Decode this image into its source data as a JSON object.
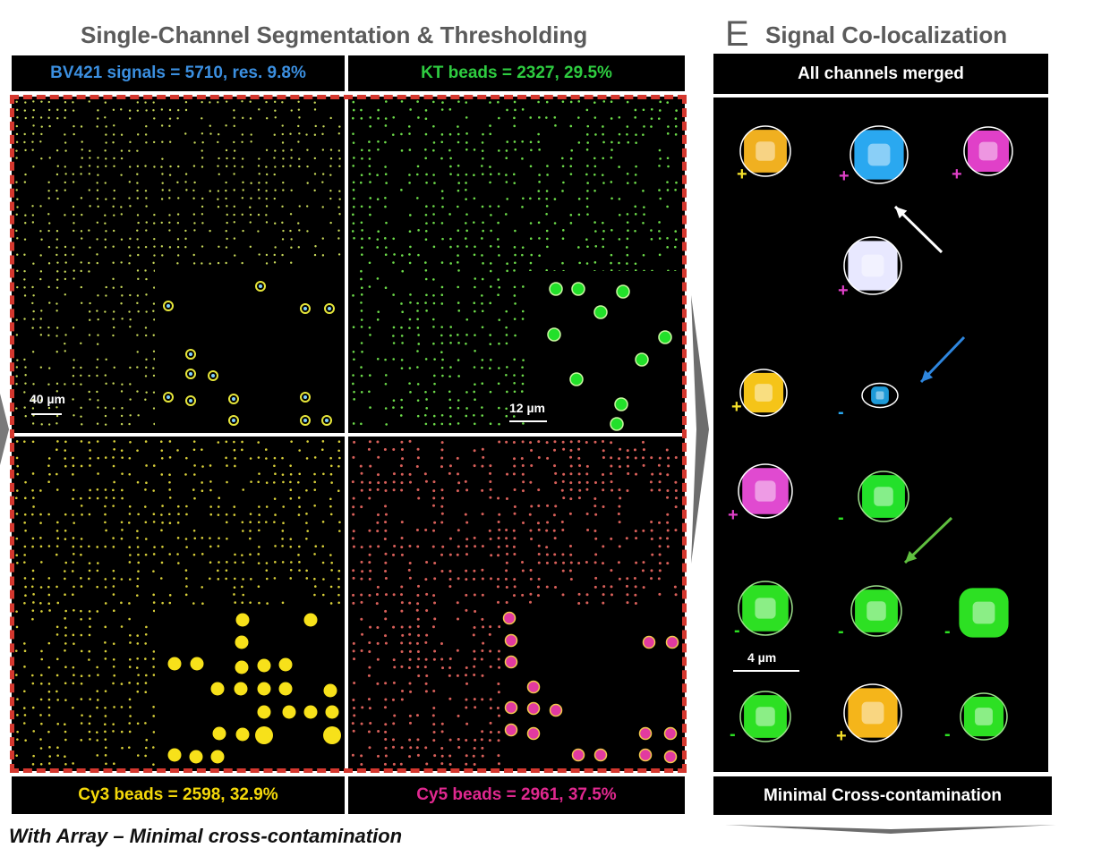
{
  "left_heading": "Single-Channel Segmentation & Thresholding",
  "right_panel_letter": "E",
  "right_heading": "Signal Co-localization",
  "channels": [
    {
      "label": "BV421 signals = 5710, res. 9.8%",
      "color": "#3b8fe0"
    },
    {
      "label": "KT beads = 2327, 29.5%",
      "color": "#2ecc40"
    },
    {
      "label": "Cy3 beads = 2598, 32.9%",
      "color": "#f5d90a"
    },
    {
      "label": "Cy5 beads = 2961, 37.5%",
      "color": "#e0288f"
    }
  ],
  "scale_bars": {
    "overview": "40 µm",
    "zoom": "12 µm",
    "coloc": "4 µm"
  },
  "merged_label": "All channels merged",
  "bottom_label": "Minimal Cross-contamination",
  "footer": "With Array – Minimal cross-contamination",
  "coloc_signs": [
    "+",
    "+",
    "+",
    "+",
    "+",
    "-",
    "+",
    "-",
    "-",
    "-",
    "-",
    "-",
    "+",
    "-"
  ],
  "colors": {
    "dashed_frame": "#d4372e",
    "heading": "#5b5b5b",
    "arrow_white": "#ffffff",
    "arrow_blue": "#2e86de",
    "arrow_green": "#5fbf3f"
  }
}
